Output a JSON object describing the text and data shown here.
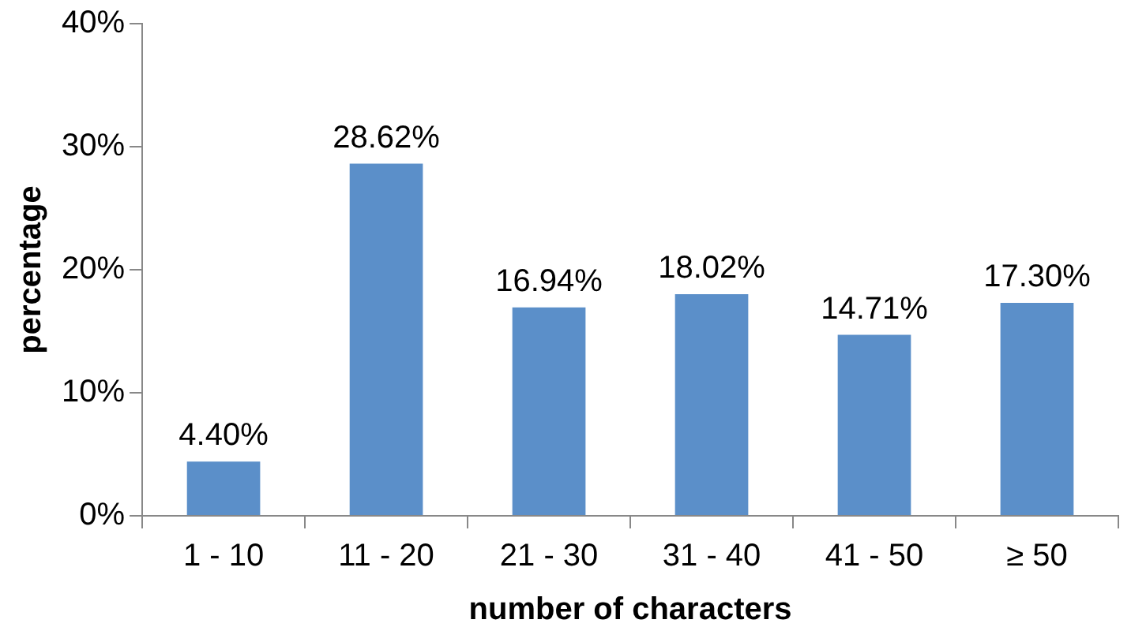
{
  "chart_data": {
    "type": "bar",
    "xlabel": "number of characters",
    "ylabel": "percentage",
    "categories": [
      "1 - 10",
      "11 - 20",
      "21 - 30",
      "31 - 40",
      "41 - 50",
      "≥ 50"
    ],
    "values": [
      4.4,
      28.62,
      16.94,
      18.02,
      14.71,
      17.3
    ],
    "value_labels": [
      "4.40%",
      "28.62%",
      "16.94%",
      "18.02%",
      "14.71%",
      "17.30%"
    ],
    "color": "#5b8fc9",
    "ylim": [
      0,
      40
    ],
    "yticks": [
      {
        "value": 0,
        "label": "0%"
      },
      {
        "value": 10,
        "label": "10%"
      },
      {
        "value": 20,
        "label": "20%"
      },
      {
        "value": 30,
        "label": "30%"
      },
      {
        "value": 40,
        "label": "40%"
      }
    ],
    "grid": false,
    "legend": false
  }
}
